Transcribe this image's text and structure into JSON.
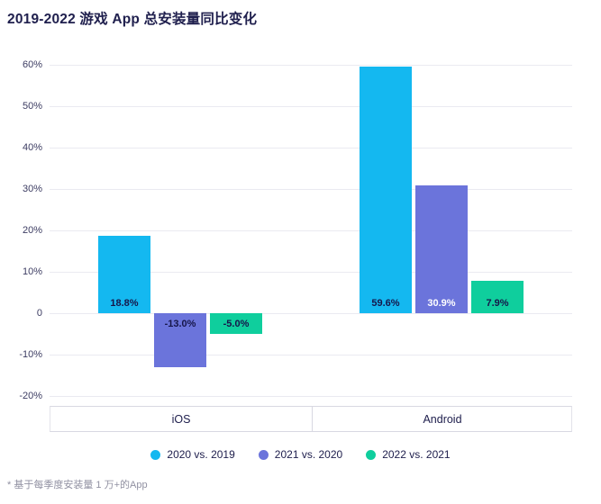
{
  "page": {
    "title": "2019-2022 游戏 App 总安装量同比变化",
    "footnote": "* 基于每季度安装量 1 万+的App"
  },
  "colors": {
    "accent_cyan": "#14B8F0",
    "accent_purple": "#6B74DB",
    "accent_green": "#0FCE9D",
    "text_dark": "#20204e",
    "label_dark": "#16164a",
    "label_light": "#ffffff"
  },
  "chart_data": {
    "type": "bar",
    "title": "2019-2022 游戏 App 总安装量同比变化",
    "categories": [
      "iOS",
      "Android"
    ],
    "series": [
      {
        "name": "2020 vs. 2019",
        "color": "#14B8F0",
        "values": [
          18.8,
          59.6
        ],
        "labels": [
          "18.8%",
          "59.6%"
        ],
        "label_colors": [
          "#16164a",
          "#16164a"
        ]
      },
      {
        "name": "2021 vs. 2020",
        "color": "#6B74DB",
        "values": [
          -13.0,
          30.9
        ],
        "labels": [
          "-13.0%",
          "30.9%"
        ],
        "label_colors": [
          "#16164a",
          "#ffffff"
        ]
      },
      {
        "name": "2022 vs. 2021",
        "color": "#0FCE9D",
        "values": [
          -5.0,
          7.9
        ],
        "labels": [
          "-5.0%",
          "7.9%"
        ],
        "label_colors": [
          "#16164a",
          "#16164a"
        ]
      }
    ],
    "ylim": [
      -20,
      60
    ],
    "yticks": [
      60,
      50,
      40,
      30,
      20,
      10,
      0,
      -10,
      -20
    ],
    "ytick_labels": [
      "60%",
      "50%",
      "40%",
      "30%",
      "20%",
      "10%",
      "0",
      "-10%",
      "-20%"
    ],
    "grid": true,
    "legend_position": "bottom",
    "footnote": "* 基于每季度安装量 1 万+的App"
  }
}
